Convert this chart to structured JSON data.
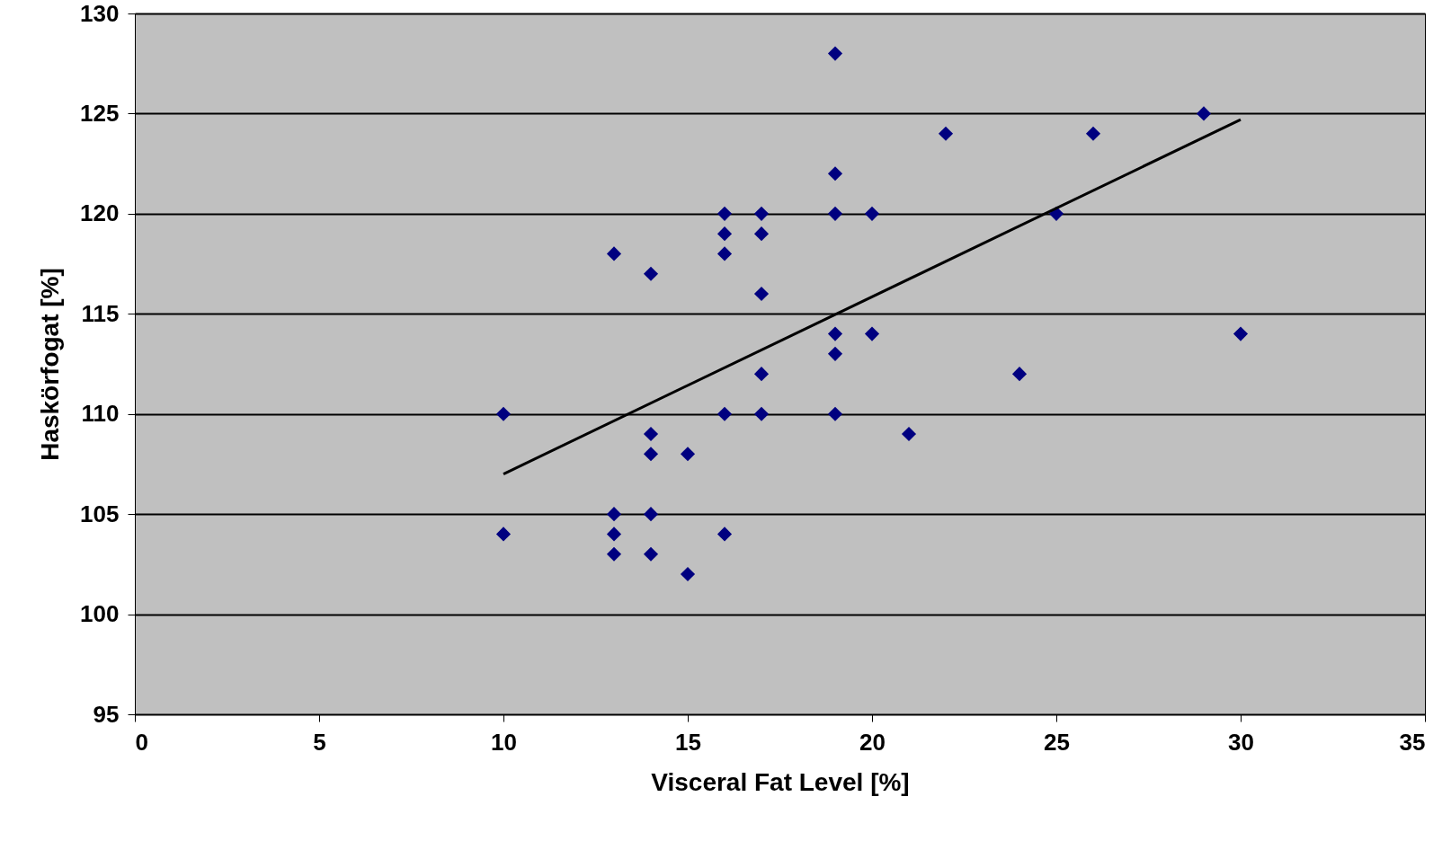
{
  "chart_data": {
    "type": "scatter",
    "xlabel": "Visceral Fat Level [%]",
    "ylabel": "Haskörfogat [%]",
    "xlim": [
      0,
      35
    ],
    "xticks": [
      0,
      5,
      10,
      15,
      20,
      25,
      30,
      35
    ],
    "ylim": [
      95,
      130
    ],
    "yticks": [
      95,
      100,
      105,
      110,
      115,
      120,
      125,
      130
    ],
    "grid": "y",
    "series": [
      {
        "marker": "diamond",
        "color": "#000080",
        "x": [
          10,
          10,
          13,
          13,
          13,
          13,
          14,
          14,
          14,
          14,
          14,
          15,
          15,
          16,
          16,
          16,
          16,
          16,
          17,
          17,
          17,
          17,
          17,
          19,
          19,
          19,
          19,
          19,
          19,
          20,
          20,
          21,
          22,
          24,
          25,
          26,
          29,
          30
        ],
        "values": [
          110,
          104,
          118,
          105,
          104,
          103,
          117,
          109,
          108,
          105,
          103,
          108,
          102,
          120,
          119,
          118,
          110,
          104,
          120,
          119,
          116,
          112,
          110,
          128,
          122,
          120,
          114,
          113,
          110,
          120,
          114,
          109,
          124,
          112,
          120,
          124,
          125,
          114
        ]
      },
      {
        "type": "line",
        "marker": "none",
        "color": "#000000",
        "x": [
          10,
          30
        ],
        "values": [
          107,
          124.7
        ]
      }
    ]
  }
}
